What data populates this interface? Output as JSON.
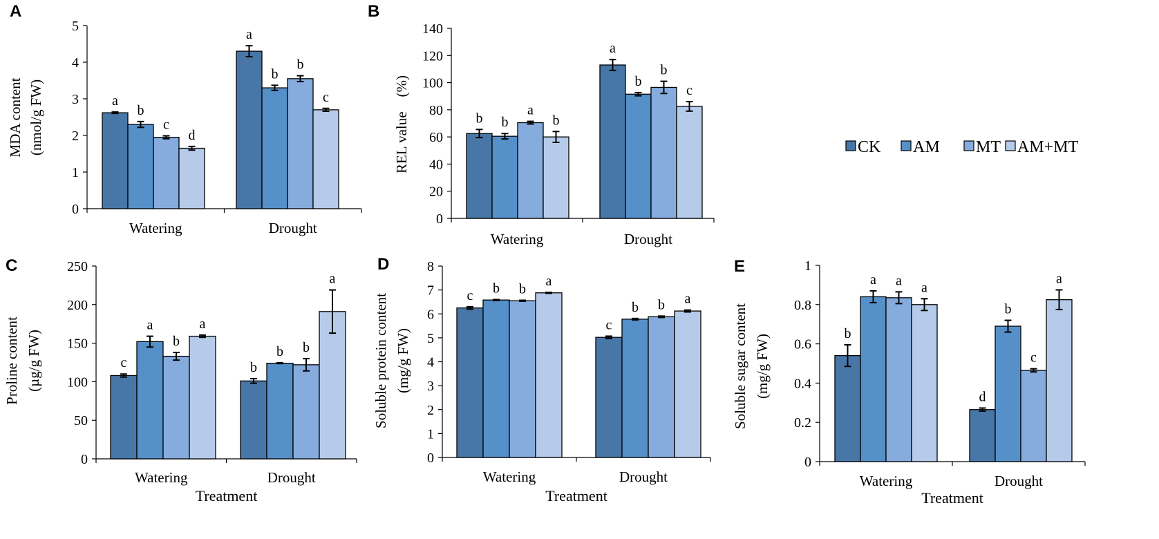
{
  "legend": [
    "CK",
    "AM",
    "MT",
    "AM+MT"
  ],
  "colors": {
    "CK": "#4877a7",
    "AM": "#5590c9",
    "MT": "#86acde",
    "AM+MT": "#b6cbe9",
    "stroke": "#000000"
  },
  "chart_data": [
    {
      "panel": "A",
      "type": "bar",
      "categories": [
        "Watering",
        "Drought"
      ],
      "ylabel_lines": [
        "MDA content",
        "(nmol/g FW)"
      ],
      "xlabel": "",
      "ylim": [
        0,
        5
      ],
      "yticks": [
        0,
        1,
        2,
        3,
        4,
        5
      ],
      "series": [
        {
          "name": "CK",
          "values": [
            2.62,
            4.3
          ],
          "errors": [
            0.02,
            0.15
          ],
          "letters": [
            "a",
            "a"
          ]
        },
        {
          "name": "AM",
          "values": [
            2.3,
            3.3
          ],
          "errors": [
            0.08,
            0.07
          ],
          "letters": [
            "b",
            "b"
          ]
        },
        {
          "name": "MT",
          "values": [
            1.95,
            3.55
          ],
          "errors": [
            0.04,
            0.08
          ],
          "letters": [
            "c",
            "b"
          ]
        },
        {
          "name": "AM+MT",
          "values": [
            1.65,
            2.7
          ],
          "errors": [
            0.05,
            0.04
          ],
          "letters": [
            "d",
            "c"
          ]
        }
      ]
    },
    {
      "panel": "B",
      "type": "bar",
      "categories": [
        "Watering",
        "Drought"
      ],
      "ylabel_lines": [
        "REL value　(%)"
      ],
      "xlabel": "",
      "ylim": [
        0,
        140
      ],
      "yticks": [
        0,
        20,
        40,
        60,
        80,
        100,
        120,
        140
      ],
      "series": [
        {
          "name": "CK",
          "values": [
            62.5,
            113
          ],
          "errors": [
            3,
            4
          ],
          "letters": [
            "b",
            "a"
          ]
        },
        {
          "name": "AM",
          "values": [
            60.5,
            91.5
          ],
          "errors": [
            2,
            1.2
          ],
          "letters": [
            "b",
            "b"
          ]
        },
        {
          "name": "MT",
          "values": [
            70.5,
            96.5
          ],
          "errors": [
            1,
            4.5
          ],
          "letters": [
            "a",
            "b"
          ]
        },
        {
          "name": "AM+MT",
          "values": [
            60,
            82.5
          ],
          "errors": [
            4,
            3.5
          ],
          "letters": [
            "b",
            "c"
          ]
        }
      ]
    },
    {
      "panel": "C",
      "type": "bar",
      "categories": [
        "Watering",
        "Drought"
      ],
      "ylabel_lines": [
        "Proline content",
        "(µg/g FW)"
      ],
      "xlabel": "Treatment",
      "ylim": [
        0,
        250
      ],
      "yticks": [
        0,
        50,
        100,
        150,
        200,
        250
      ],
      "series": [
        {
          "name": "CK",
          "values": [
            108,
            101
          ],
          "errors": [
            2,
            3
          ],
          "letters": [
            "c",
            "b"
          ]
        },
        {
          "name": "AM",
          "values": [
            152,
            124
          ],
          "errors": [
            7,
            0.5
          ],
          "letters": [
            "a",
            "b"
          ]
        },
        {
          "name": "MT",
          "values": [
            133,
            122
          ],
          "errors": [
            5,
            8
          ],
          "letters": [
            "b",
            "b"
          ]
        },
        {
          "name": "AM+MT",
          "values": [
            159,
            191
          ],
          "errors": [
            1.5,
            28
          ],
          "letters": [
            "a",
            "a"
          ]
        }
      ]
    },
    {
      "panel": "D",
      "type": "bar",
      "categories": [
        "Watering",
        "Drought"
      ],
      "ylabel_lines": [
        "Soluble protein content",
        "(mg/g FW)"
      ],
      "xlabel": "Treatment",
      "ylim": [
        0,
        8
      ],
      "yticks": [
        0,
        1,
        2,
        3,
        4,
        5,
        6,
        7,
        8
      ],
      "series": [
        {
          "name": "CK",
          "values": [
            6.25,
            5.02
          ],
          "errors": [
            0.05,
            0.05
          ],
          "letters": [
            "c",
            "c"
          ]
        },
        {
          "name": "AM",
          "values": [
            6.58,
            5.78
          ],
          "errors": [
            0.02,
            0.03
          ],
          "letters": [
            "b",
            "b"
          ]
        },
        {
          "name": "MT",
          "values": [
            6.55,
            5.88
          ],
          "errors": [
            0.02,
            0.03
          ],
          "letters": [
            "b",
            "b"
          ]
        },
        {
          "name": "AM+MT",
          "values": [
            6.88,
            6.12
          ],
          "errors": [
            0.02,
            0.04
          ],
          "letters": [
            "a",
            "a"
          ]
        }
      ]
    },
    {
      "panel": "E",
      "type": "bar",
      "categories": [
        "Watering",
        "Drought"
      ],
      "ylabel_lines": [
        "Soluble sugar content",
        "(mg/g FW)"
      ],
      "xlabel": "Treatment",
      "ylim": [
        0,
        1
      ],
      "yticks": [
        0,
        0.2,
        0.4,
        0.6,
        0.8,
        1
      ],
      "series": [
        {
          "name": "CK",
          "values": [
            0.54,
            0.265
          ],
          "errors": [
            0.055,
            0.008
          ],
          "letters": [
            "b",
            "d"
          ]
        },
        {
          "name": "AM",
          "values": [
            0.84,
            0.69
          ],
          "errors": [
            0.03,
            0.03
          ],
          "letters": [
            "a",
            "b"
          ]
        },
        {
          "name": "MT",
          "values": [
            0.835,
            0.465
          ],
          "errors": [
            0.03,
            0.008
          ],
          "letters": [
            "a",
            "c"
          ]
        },
        {
          "name": "AM+MT",
          "values": [
            0.8,
            0.825
          ],
          "errors": [
            0.03,
            0.05
          ],
          "letters": [
            "a",
            "a"
          ]
        }
      ]
    }
  ]
}
